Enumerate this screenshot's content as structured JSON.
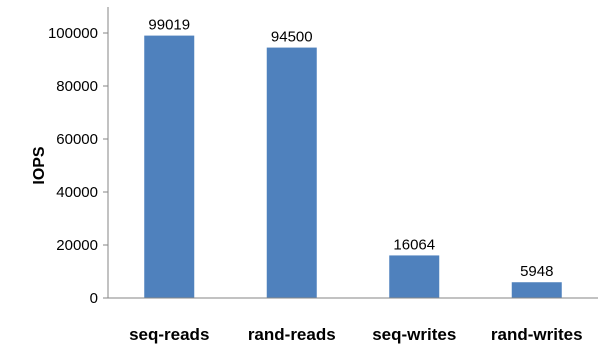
{
  "chart_data": {
    "type": "bar",
    "title": "",
    "xlabel": "",
    "ylabel": "IOPS",
    "categories": [
      "seq-reads",
      "rand-reads",
      "seq-writes",
      "rand-writes"
    ],
    "values": [
      99019,
      94500,
      16064,
      5948
    ],
    "data_labels": [
      "99019",
      "94500",
      "16064",
      "5948"
    ],
    "ylim": [
      0,
      100000
    ],
    "yticks": [
      0,
      20000,
      40000,
      60000,
      80000,
      100000
    ],
    "ytick_labels": [
      "0",
      "20000",
      "40000",
      "60000",
      "80000",
      "100000"
    ],
    "grid": false,
    "legend": "none",
    "bar_color": "#4F81BD",
    "axis_color": "#868686"
  }
}
